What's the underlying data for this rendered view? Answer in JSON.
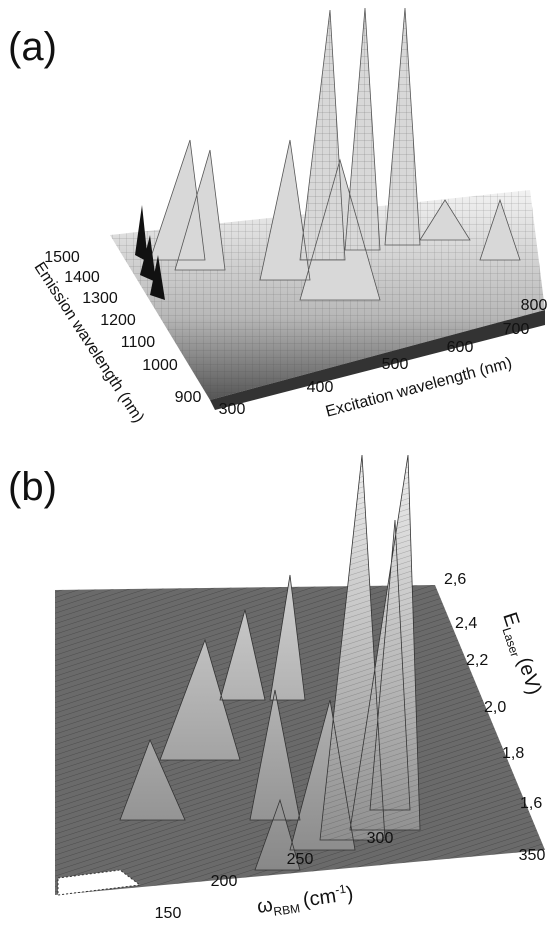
{
  "panel_a": {
    "label": "(a)",
    "x_title": "Excitation wavelength (nm)",
    "x_ticks": [
      300,
      400,
      500,
      600,
      700,
      800
    ],
    "y_title": "Emission wavelength (nm)",
    "y_ticks": [
      1500,
      1400,
      1300,
      1200,
      1100,
      1000,
      900
    ]
  },
  "panel_b": {
    "label": "(b)",
    "x_title": {
      "symbol": "ω",
      "subscript": "RBM",
      "unit": "(cm",
      "superscript": "-1",
      "close": ")"
    },
    "x_ticks": [
      150,
      200,
      250,
      300,
      350
    ],
    "y_title": {
      "symbol": "E",
      "subscript": "Laser",
      "unit": "(eV)"
    },
    "y_ticks": [
      "2,6",
      "2,4",
      "2,2",
      "2,0",
      "1,8",
      "1,6"
    ]
  }
}
